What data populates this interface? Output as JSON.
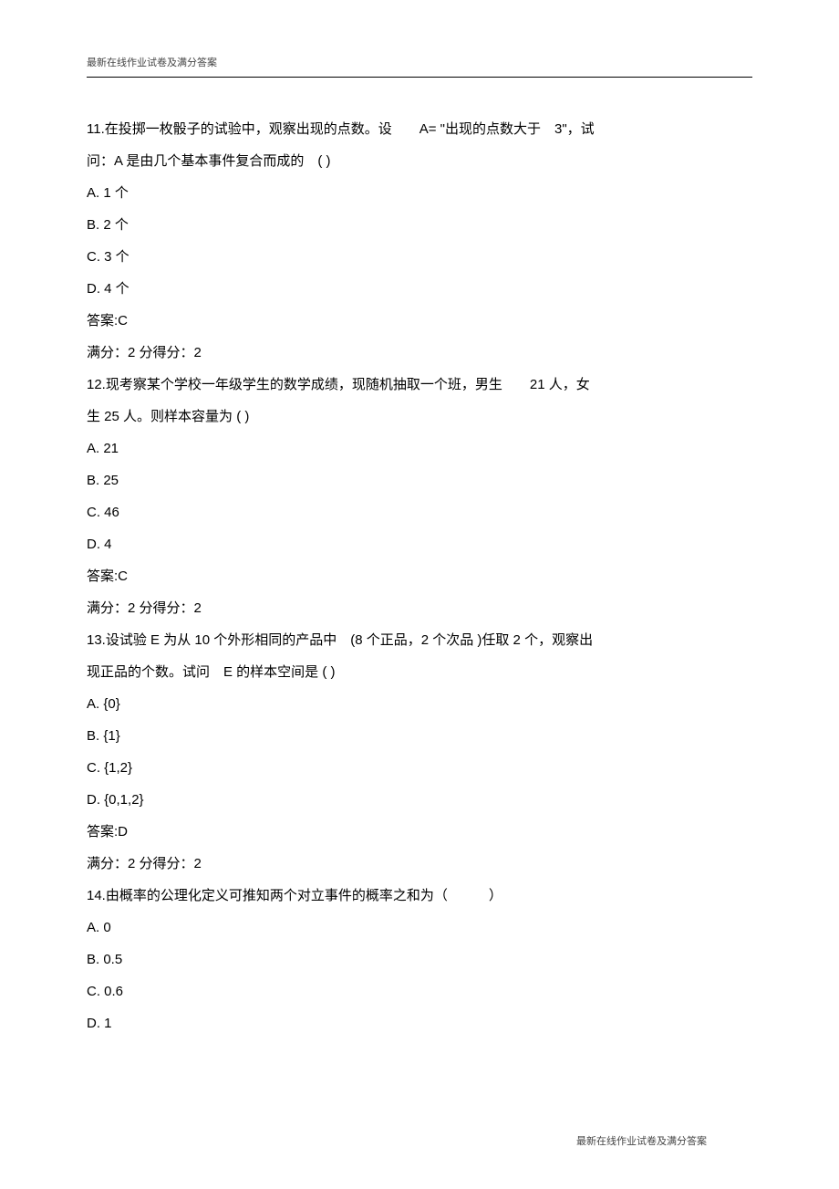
{
  "header": "最新在线作业试卷及满分答案",
  "footer": "最新在线作业试卷及满分答案",
  "questions": [
    {
      "number": "11",
      "text_lines": [
        "11.在投掷一枚骰子的试验中，观察出现的点数。设　　A= \"出现的点数大于　3\"，试",
        "问：A 是由几个基本事件复合而成的　( )"
      ],
      "options": [
        "A. 1 个",
        "B. 2 个",
        "C. 3 个",
        "D. 4 个"
      ],
      "answer": "答案:C",
      "score": "满分：2 分得分：2"
    },
    {
      "number": "12",
      "text_lines": [
        "12.现考察某个学校一年级学生的数学成绩，现随机抽取一个班，男生　　21 人，女",
        "生 25 人。则样本容量为 ( )"
      ],
      "options": [
        "A. 21",
        "B. 25",
        "C. 46",
        "D. 4"
      ],
      "answer": "答案:C",
      "score": "满分：2 分得分：2"
    },
    {
      "number": "13",
      "text_lines": [
        "13.设试验 E 为从 10 个外形相同的产品中　(8 个正品，2 个次品 )任取 2 个，观察出",
        "现正品的个数。试问　E 的样本空间是 ( )"
      ],
      "options": [
        "A. {0}",
        "B. {1}",
        "C. {1,2}",
        "D. {0,1,2}"
      ],
      "answer": "答案:D",
      "score": "满分：2 分得分：2"
    },
    {
      "number": "14",
      "text_lines": [
        "14.由概率的公理化定义可推知两个对立事件的概率之和为（　　　）"
      ],
      "options": [
        "A. 0",
        "B. 0.5",
        "C. 0.6",
        "D. 1"
      ],
      "answer": "",
      "score": ""
    }
  ]
}
